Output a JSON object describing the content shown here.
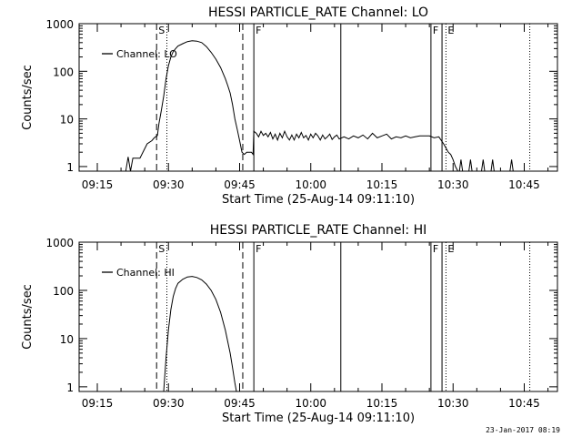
{
  "footer": {
    "timestamp": "23-Jan-2017 08:19"
  },
  "chart_data": [
    {
      "type": "line",
      "title": "HESSI PARTICLE_RATE Channel: LO",
      "xlabel": "Start Time (25-Aug-14 09:11:10)",
      "ylabel": "Counts/sec",
      "yscale": "log",
      "xlim": [
        "09:11:10",
        "10:52:00"
      ],
      "ylim": [
        0.8,
        1000
      ],
      "xticks": [
        "09:15",
        "09:30",
        "09:45",
        "10:00",
        "10:15",
        "10:30",
        "10:45"
      ],
      "yticks": [
        "1",
        "10",
        "100",
        "1000"
      ],
      "legend": {
        "label": "Channel: LO",
        "placement": "top-left"
      },
      "markers": [
        {
          "time": "09:27:30",
          "style": "dashed",
          "label": "S"
        },
        {
          "time": "09:29:40",
          "style": "dotted",
          "label": ""
        },
        {
          "time": "09:45:40",
          "style": "dashed",
          "label": ""
        },
        {
          "time": "09:48:00",
          "style": "solid",
          "label": "F"
        },
        {
          "time": "10:06:20",
          "style": "solid",
          "label": ""
        },
        {
          "time": "10:25:20",
          "style": "solid",
          "label": "F"
        },
        {
          "time": "10:27:40",
          "style": "solid",
          "label": ""
        },
        {
          "time": "10:28:30",
          "style": "dotted",
          "label": "E"
        },
        {
          "time": "10:46:10",
          "style": "dotted",
          "label": ""
        }
      ],
      "series": [
        {
          "name": "Channel: LO",
          "x": [
            "09:11:10",
            "09:21:00",
            "09:21:30",
            "09:22:00",
            "09:22:30",
            "09:23:00",
            "09:23:30",
            "09:24:00",
            "09:25:30",
            "09:26:30",
            "09:27:00",
            "09:27:40",
            "09:28:00",
            "09:28:30",
            "09:29:00",
            "09:29:30",
            "09:30:00",
            "09:30:30",
            "09:31:00",
            "09:31:30",
            "09:32:00",
            "09:33:00",
            "09:34:00",
            "09:35:00",
            "09:36:00",
            "09:37:00",
            "09:38:00",
            "09:39:00",
            "09:40:00",
            "09:41:00",
            "09:42:00",
            "09:42:30",
            "09:43:00",
            "09:43:30",
            "09:44:00",
            "09:44:30",
            "09:45:00",
            "09:45:30",
            "09:46:00",
            "09:46:30",
            "09:47:00",
            "09:47:30",
            "09:47:50",
            "09:48:00",
            "09:48:30",
            "09:49:00",
            "09:49:30",
            "09:50:00",
            "09:50:30",
            "09:51:00",
            "09:51:30",
            "09:52:00",
            "09:52:30",
            "09:53:00",
            "09:53:30",
            "09:54:00",
            "09:54:30",
            "09:55:00",
            "09:55:30",
            "09:56:00",
            "09:56:30",
            "09:57:00",
            "09:57:30",
            "09:58:00",
            "09:58:30",
            "09:59:00",
            "09:59:30",
            "10:00:00",
            "10:00:30",
            "10:01:00",
            "10:01:30",
            "10:02:00",
            "10:02:30",
            "10:03:00",
            "10:03:30",
            "10:04:00",
            "10:04:30",
            "10:05:00",
            "10:05:30",
            "10:06:00",
            "10:07:00",
            "10:08:00",
            "10:09:00",
            "10:10:00",
            "10:11:00",
            "10:12:00",
            "10:13:00",
            "10:14:00",
            "10:15:00",
            "10:16:00",
            "10:17:00",
            "10:18:00",
            "10:19:00",
            "10:20:00",
            "10:21:00",
            "10:22:00",
            "10:23:00",
            "10:24:00",
            "10:25:00",
            "10:26:00",
            "10:27:00",
            "10:28:00",
            "10:29:00",
            "10:29:30",
            "10:30:00",
            "10:30:30",
            "10:31:00",
            "10:31:20",
            "10:31:40",
            "10:32:00",
            "10:33:00",
            "10:33:20",
            "10:33:40",
            "10:34:00",
            "10:36:00",
            "10:36:20",
            "10:36:40",
            "10:38:00",
            "10:38:20",
            "10:38:40",
            "10:42:00",
            "10:42:20",
            "10:42:40",
            "10:52:00"
          ],
          "y": [
            0.8,
            0.8,
            1.6,
            0.8,
            1.5,
            1.5,
            1.5,
            1.5,
            3,
            3.5,
            4,
            4.5,
            8,
            15,
            30,
            70,
            130,
            200,
            260,
            300,
            340,
            380,
            420,
            440,
            430,
            400,
            330,
            250,
            180,
            120,
            70,
            50,
            35,
            20,
            10,
            6,
            3.5,
            2,
            1.8,
            2,
            2,
            2,
            1.8,
            5.5,
            5,
            4.2,
            5.5,
            4.5,
            5,
            4.2,
            5.2,
            3.8,
            4.8,
            3.6,
            5,
            4,
            5.5,
            4.2,
            3.6,
            4.6,
            3.6,
            4.8,
            4,
            5.2,
            4,
            4.5,
            3.6,
            4.8,
            4,
            5,
            4.4,
            3.6,
            4.6,
            3.8,
            4.2,
            4.8,
            3.7,
            4.2,
            4.6,
            3.8,
            4.2,
            3.8,
            4.4,
            4,
            4.6,
            3.8,
            5,
            4,
            4.4,
            4.8,
            3.8,
            4.2,
            4,
            4.4,
            4,
            4.2,
            4.4,
            4.4,
            4.4,
            4,
            4.2,
            3,
            2,
            1.8,
            1.4,
            1,
            0.8,
            0.8,
            1.4,
            0.8,
            0.8,
            0.8,
            1.4,
            0.8,
            0.8,
            1.4,
            0.8,
            0.8,
            1.4,
            0.8,
            0.8,
            1.4,
            0.8,
            0.8
          ]
        }
      ]
    },
    {
      "type": "line",
      "title": "HESSI PARTICLE_RATE Channel: HI",
      "xlabel": "Start Time (25-Aug-14 09:11:10)",
      "ylabel": "Counts/sec",
      "yscale": "log",
      "xlim": [
        "09:11:10",
        "10:52:00"
      ],
      "ylim": [
        0.8,
        1000
      ],
      "xticks": [
        "09:15",
        "09:30",
        "09:45",
        "10:00",
        "10:15",
        "10:30",
        "10:45"
      ],
      "yticks": [
        "1",
        "10",
        "100",
        "1000"
      ],
      "legend": {
        "label": "Channel: HI",
        "placement": "top-left"
      },
      "markers": [
        {
          "time": "09:27:30",
          "style": "dashed",
          "label": "S"
        },
        {
          "time": "09:29:40",
          "style": "dotted",
          "label": ""
        },
        {
          "time": "09:45:40",
          "style": "dashed",
          "label": ""
        },
        {
          "time": "09:48:00",
          "style": "solid",
          "label": "F"
        },
        {
          "time": "10:06:20",
          "style": "solid",
          "label": ""
        },
        {
          "time": "10:25:20",
          "style": "solid",
          "label": "F"
        },
        {
          "time": "10:27:40",
          "style": "solid",
          "label": ""
        },
        {
          "time": "10:28:30",
          "style": "dotted",
          "label": "E"
        },
        {
          "time": "10:46:10",
          "style": "dotted",
          "label": ""
        }
      ],
      "series": [
        {
          "name": "Channel: HI",
          "x": [
            "09:29:00",
            "09:29:30",
            "09:30:00",
            "09:30:30",
            "09:31:00",
            "09:31:30",
            "09:32:00",
            "09:33:00",
            "09:34:00",
            "09:35:00",
            "09:36:00",
            "09:37:00",
            "09:38:00",
            "09:39:00",
            "09:40:00",
            "09:41:00",
            "09:42:00",
            "09:43:00",
            "09:43:30",
            "09:44:00",
            "09:44:20"
          ],
          "y": [
            0.8,
            4,
            15,
            40,
            75,
            110,
            140,
            170,
            190,
            195,
            185,
            165,
            135,
            100,
            65,
            35,
            15,
            5,
            2.5,
            1.2,
            0.8
          ]
        }
      ]
    }
  ]
}
